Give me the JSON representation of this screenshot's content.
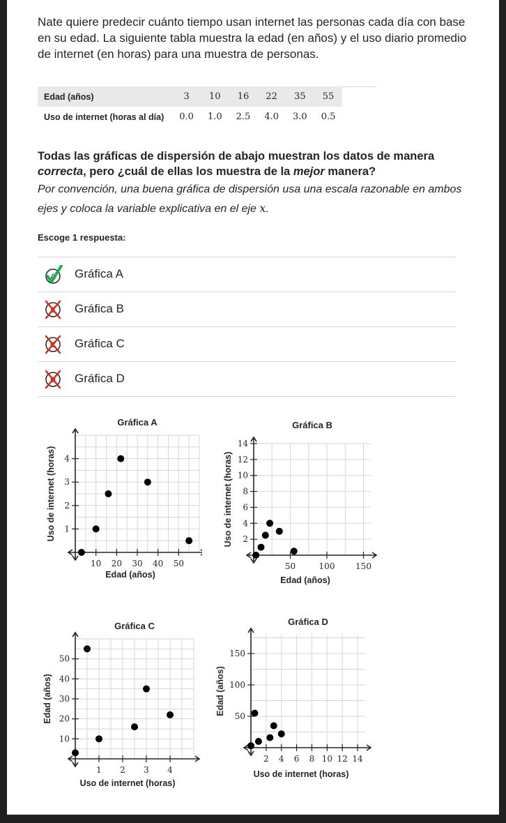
{
  "intro": "Nate quiere predecir cuánto tiempo usan internet las personas cada día con base en su edad. La siguiente tabla muestra la edad (en años) y el uso diario promedio de internet (en horas) para una muestra de personas.",
  "table": {
    "row1_label": "Edad (años)",
    "row1": [
      "3",
      "10",
      "16",
      "22",
      "35",
      "55"
    ],
    "row2_label": "Uso de internet (horas al día)",
    "row2": [
      "0.0",
      "1.0",
      "2.5",
      "4.0",
      "3.0",
      "0.5"
    ]
  },
  "question": {
    "part1": "Todas las gráficas de dispersión de abajo muestran los datos de manera ",
    "em1": "correcta",
    "part2": ", pero ¿cuál de ellas los muestra de la ",
    "em2": "mejor",
    "part3": " manera?"
  },
  "hint": {
    "text": "Por convención, una buena gráfica de dispersión usa una escala razonable en ambos ejes y coloca la variable explicativa en el eje ",
    "math": "x",
    "end": "."
  },
  "prompt": "Escoge 1 respuesta:",
  "choices": [
    {
      "letter": "A",
      "label": "Gráfica A",
      "state": "correct"
    },
    {
      "letter": "B",
      "label": "Gráfica B",
      "state": "crossed"
    },
    {
      "letter": "C",
      "label": "Gráfica C",
      "state": "crossed"
    },
    {
      "letter": "D",
      "label": "Gráfica D",
      "state": "crossed"
    }
  ],
  "colors": {
    "check": "#1fab54",
    "cross": "#d92916",
    "text": "#21242c",
    "grid": "#d6d6d6"
  },
  "chart_data": [
    {
      "type": "scatter",
      "title": "Gráfica A",
      "xlabel": "Edad (años)",
      "ylabel": "Uso de internet (horas)",
      "x": [
        3,
        10,
        16,
        22,
        35,
        55
      ],
      "y": [
        0.0,
        1.0,
        2.5,
        4.0,
        3.0,
        0.5
      ],
      "xlim": [
        0,
        60
      ],
      "ylim": [
        0,
        5
      ],
      "xticks": [
        10,
        20,
        30,
        40,
        50
      ],
      "yticks": [
        1,
        2,
        3,
        4
      ],
      "xgrid_step": 5,
      "ygrid_step": 0.5,
      "grid": true
    },
    {
      "type": "scatter",
      "title": "Gráfica B",
      "xlabel": "Edad (años)",
      "ylabel": "Uso de internet (horas)",
      "x": [
        3,
        10,
        16,
        22,
        35,
        55
      ],
      "y": [
        0.0,
        1.0,
        2.5,
        4.0,
        3.0,
        0.5
      ],
      "xlim": [
        0,
        160
      ],
      "ylim": [
        0,
        14
      ],
      "xticks": [
        50,
        100,
        150
      ],
      "yticks": [
        2,
        4,
        6,
        8,
        10,
        12,
        14
      ],
      "xgrid_step": 25,
      "ygrid_step": 2,
      "grid": true
    },
    {
      "type": "scatter",
      "title": "Gráfica C",
      "xlabel": "Uso de internet (horas)",
      "ylabel": "Edad (años)",
      "x": [
        0.0,
        1.0,
        2.5,
        4.0,
        3.0,
        0.5
      ],
      "y": [
        3,
        10,
        16,
        22,
        35,
        55
      ],
      "xlim": [
        0,
        5
      ],
      "ylim": [
        0,
        60
      ],
      "xticks": [
        1,
        2,
        3,
        4
      ],
      "yticks": [
        10,
        20,
        30,
        40,
        50
      ],
      "xgrid_step": 0.5,
      "ygrid_step": 5,
      "grid": true
    },
    {
      "type": "scatter",
      "title": "Gráfica D",
      "xlabel": "Uso de internet (horas)",
      "ylabel": "Edad (años)",
      "x": [
        0.0,
        1.0,
        2.5,
        4.0,
        3.0,
        0.5
      ],
      "y": [
        3,
        10,
        16,
        22,
        35,
        55
      ],
      "xlim": [
        0,
        15
      ],
      "ylim": [
        0,
        180
      ],
      "xticks": [
        2,
        4,
        6,
        8,
        10,
        12,
        14
      ],
      "yticks": [
        50,
        100,
        150
      ],
      "xgrid_step": 2,
      "ygrid_step": 25,
      "grid": true
    }
  ]
}
